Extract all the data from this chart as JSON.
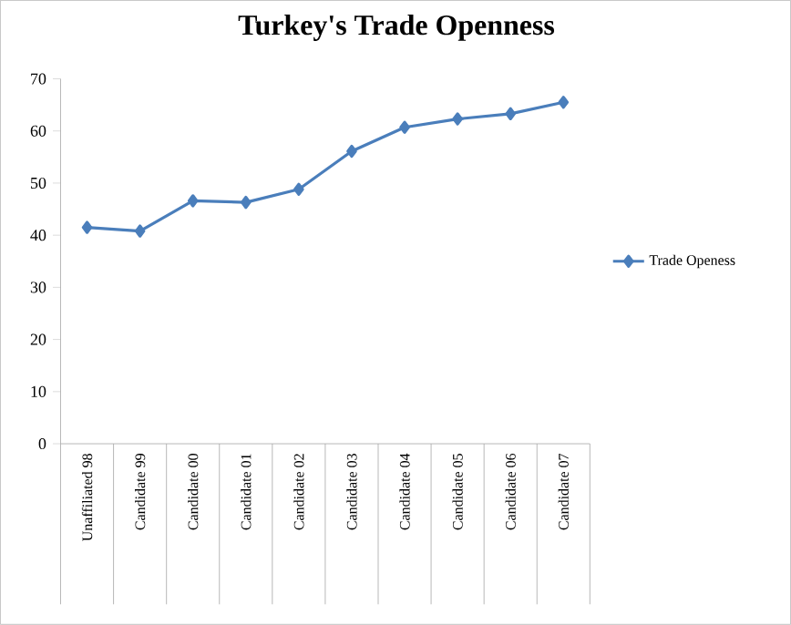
{
  "chart_data": {
    "type": "line",
    "title": "Turkey's Trade Openness",
    "categories": [
      "Unaffiliated 98",
      "Candidate 99",
      "Candidate 00",
      "Candidate 01",
      "Candidate 02",
      "Candidate 03",
      "Candidate 04",
      "Candidate 05",
      "Candidate 06",
      "Candidate 07"
    ],
    "series": [
      {
        "name": "Trade Openess",
        "color": "#4a7ebb",
        "values": [
          41.5,
          40.8,
          46.6,
          46.3,
          48.8,
          56.1,
          60.7,
          62.3,
          63.3,
          65.5
        ]
      }
    ],
    "ylim": [
      0,
      70
    ],
    "yticks": [
      0,
      10,
      20,
      30,
      40,
      50,
      60,
      70
    ],
    "grid": false,
    "legend": "right",
    "marker": "diamond",
    "line_style": "solid"
  }
}
